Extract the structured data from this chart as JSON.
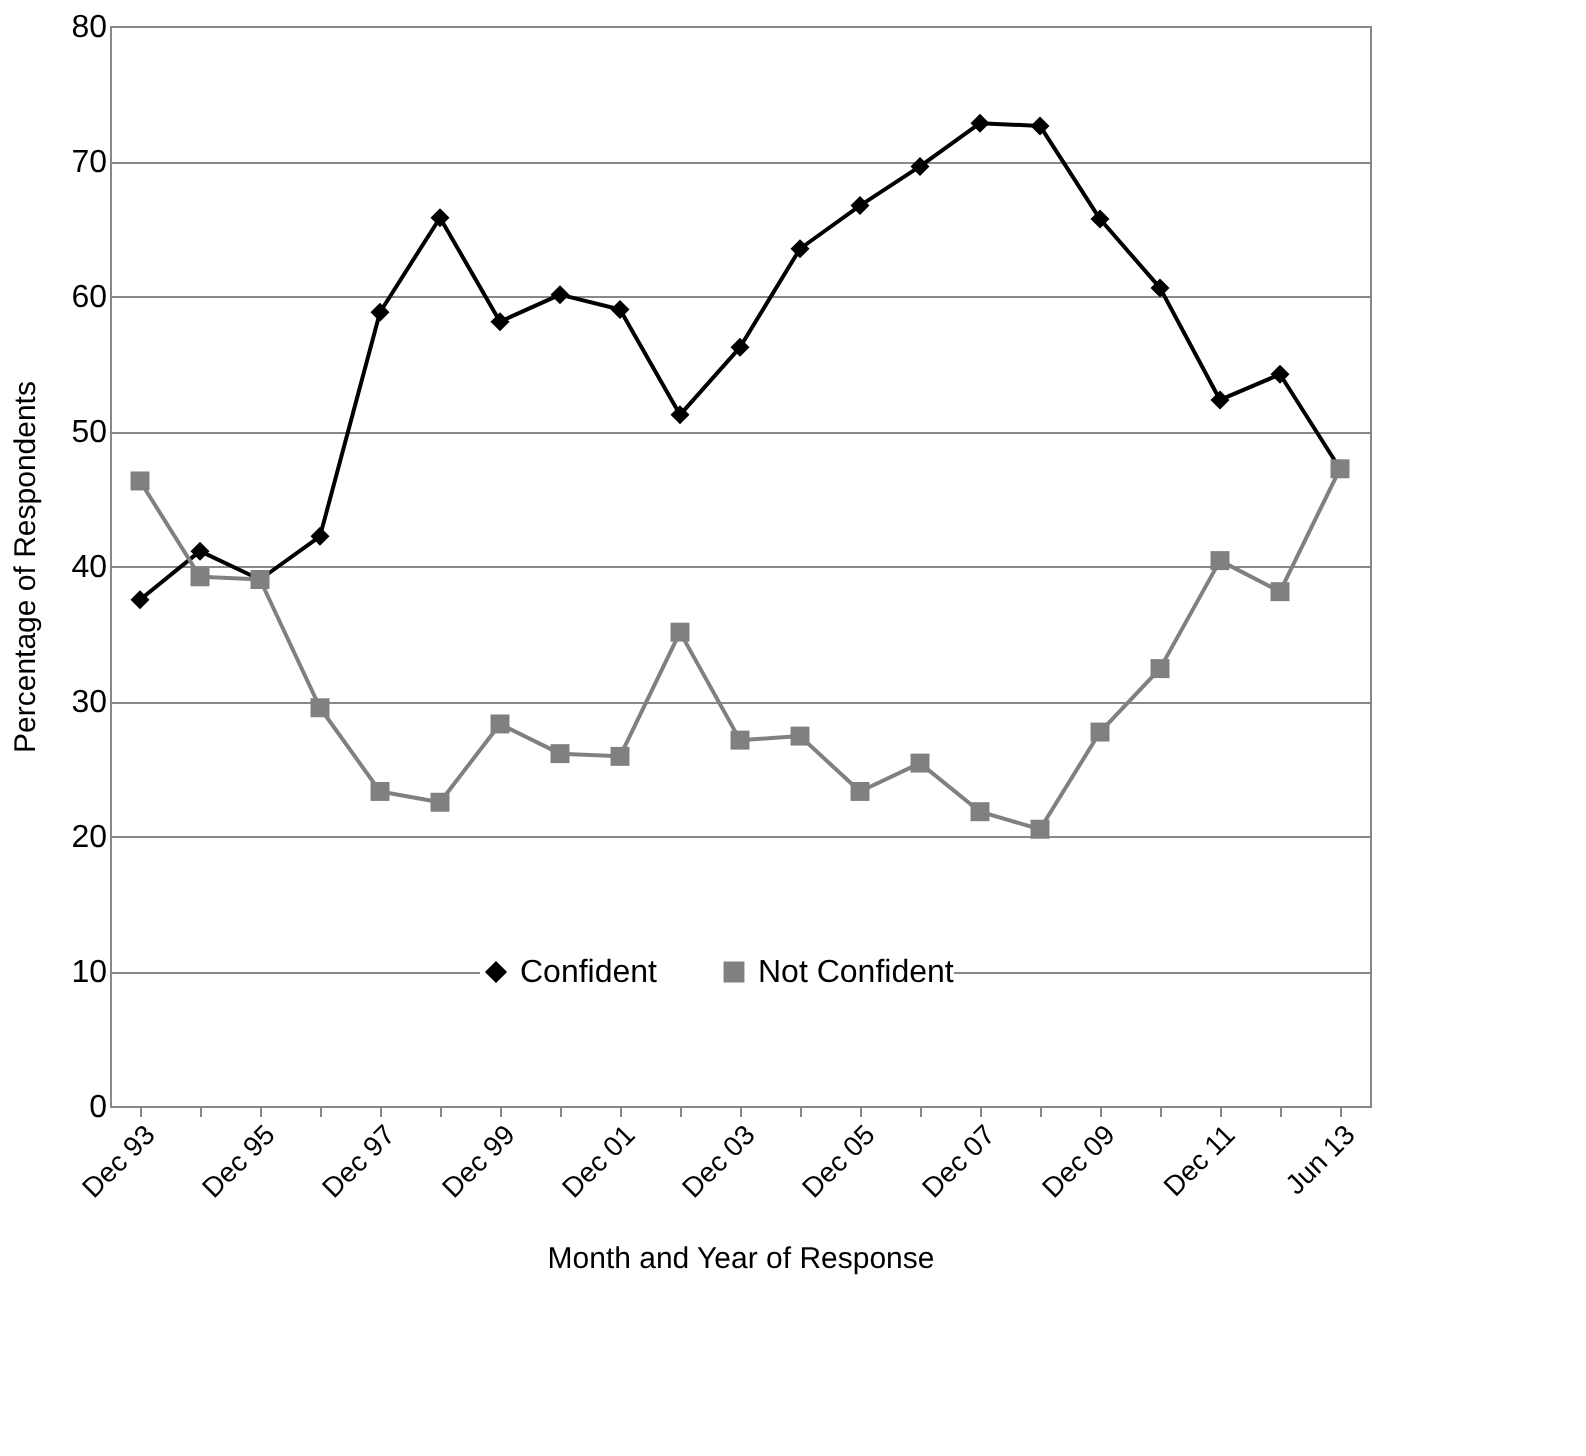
{
  "chart_data": {
    "type": "line",
    "xlabel": "Month and Year of Response",
    "ylabel": "Percentage of Respondents",
    "categories": [
      "Dec 93",
      null,
      "Dec 95",
      null,
      "Dec 97",
      null,
      "Dec 99",
      null,
      "Dec 01",
      null,
      "Dec 03",
      null,
      "Dec 05",
      null,
      "Dec 07",
      null,
      "Dec 09",
      null,
      "Dec 11",
      null,
      "Jun 13"
    ],
    "series": [
      {
        "name": "Confident",
        "color": "#000000",
        "marker": "diamond",
        "values": [
          37.5,
          41.1,
          39.0,
          42.2,
          58.8,
          65.8,
          58.1,
          60.1,
          59.0,
          51.2,
          56.2,
          63.5,
          66.7,
          69.6,
          72.8,
          72.6,
          65.7,
          60.6,
          52.3,
          54.2,
          47.2
        ]
      },
      {
        "name": "Not Confident",
        "color": "#808080",
        "marker": "square",
        "values": [
          46.3,
          39.2,
          39.0,
          29.5,
          23.3,
          22.5,
          28.3,
          26.1,
          25.9,
          35.1,
          27.1,
          27.4,
          23.3,
          25.4,
          21.8,
          20.5,
          27.7,
          32.4,
          40.4,
          38.1,
          47.2
        ]
      }
    ],
    "ylim": [
      0,
      80
    ],
    "yticks": [
      0,
      10,
      20,
      30,
      40,
      50,
      60,
      70,
      80
    ],
    "grid": "y",
    "legend": "bottom"
  }
}
